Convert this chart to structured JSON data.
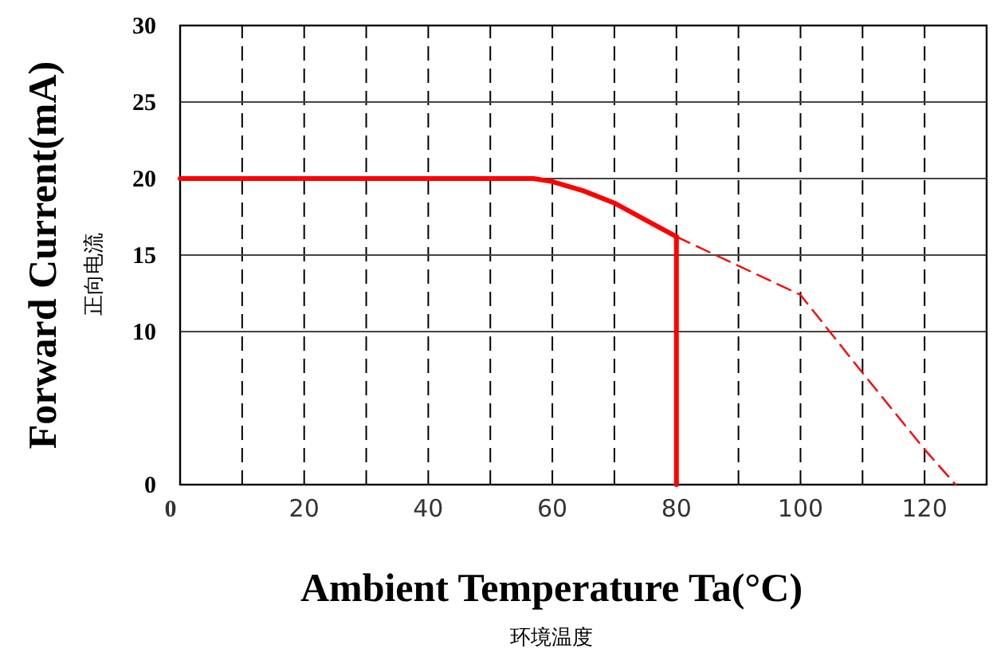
{
  "chart_data": {
    "type": "line",
    "xlabel": "Ambient Temperature Ta(°C)\n环境温度",
    "ylabel": "Forward Current(mA)\n正向电流",
    "xlim": [
      0,
      130
    ],
    "ylim": [
      0,
      30
    ],
    "xticks": [
      0,
      {
        "value": 10,
        "label": null
      },
      20,
      {
        "value": 30,
        "label": null
      },
      40,
      {
        "value": 50,
        "label": null
      },
      60,
      {
        "value": 70,
        "label": null
      },
      80,
      {
        "value": 90,
        "label": null
      },
      100,
      {
        "value": 110,
        "label": null
      },
      120
    ],
    "yticks": [
      0,
      10,
      15,
      20,
      25,
      30
    ],
    "grid": true,
    "series": [
      {
        "color": "#ff0000",
        "line_style": "solid",
        "x": [
          0,
          57,
          60,
          65,
          70,
          75,
          80
        ],
        "values": [
          20,
          20,
          19.8,
          19.2,
          18.4,
          17.3,
          16.2
        ]
      },
      {
        "color": "#ff0000",
        "line_style": "dashed",
        "x": [
          80,
          100,
          110,
          120,
          125
        ],
        "values": [
          16.2,
          12.4,
          7.3,
          2.3,
          0
        ]
      },
      {
        "color": "#ff0000",
        "line_style": "solid",
        "x": [
          80,
          80
        ],
        "values": [
          0,
          16.2
        ]
      }
    ]
  }
}
